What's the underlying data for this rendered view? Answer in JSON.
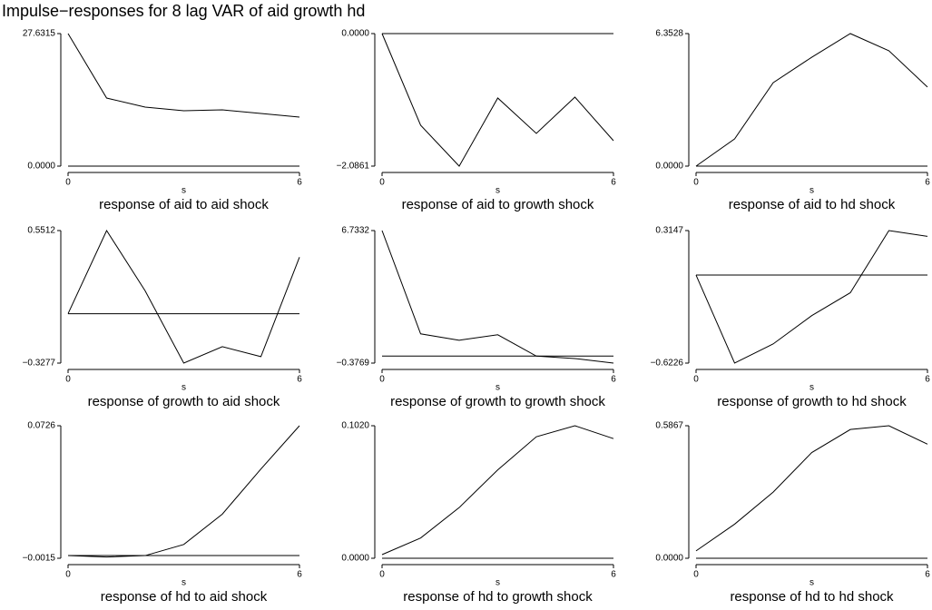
{
  "title": "Impulse−responses for 8 lag VAR of aid growth hd",
  "chart_data": [
    {
      "type": "line",
      "title": "response of aid to aid shock",
      "xlabel": "s",
      "x": [
        0,
        1,
        2,
        3,
        4,
        5,
        6
      ],
      "values": [
        27.6315,
        14.19,
        12.3,
        11.54,
        11.73,
        10.98,
        10.22
      ],
      "color": "#000000",
      "xlim": [
        0,
        6
      ],
      "xticks": [
        0,
        6
      ],
      "ylim": [
        0,
        27.6315
      ],
      "yticks": [
        {
          "value": 0,
          "label": "0.0000"
        },
        27.6315
      ]
    },
    {
      "type": "line",
      "title": "response of aid to growth shock",
      "xlabel": "s",
      "x": [
        0,
        1,
        2,
        3,
        4,
        5,
        6
      ],
      "values": [
        0,
        -1.443,
        -2.0861,
        -1.014,
        -1.571,
        -1.0,
        -1.686
      ],
      "color": "#000000",
      "xlim": [
        0,
        6
      ],
      "xticks": [
        0,
        6
      ],
      "ylim": [
        -2.0861,
        0
      ],
      "yticks": [
        {
          "value": -2.0861,
          "label": "−2.0861"
        },
        {
          "value": 0,
          "label": "0.0000"
        }
      ]
    },
    {
      "type": "line",
      "title": "response of aid to hd shock",
      "xlabel": "s",
      "x": [
        0,
        1,
        2,
        3,
        4,
        5,
        6
      ],
      "values": [
        0,
        1.305,
        4.0,
        5.22,
        6.3528,
        5.53,
        3.79
      ],
      "color": "#000000",
      "xlim": [
        0,
        6
      ],
      "xticks": [
        0,
        6
      ],
      "ylim": [
        0,
        6.3528
      ],
      "yticks": [
        {
          "value": 0,
          "label": "0.0000"
        },
        6.3528
      ]
    },
    {
      "type": "line",
      "title": "response of growth to aid shock",
      "xlabel": "s",
      "x": [
        0,
        1,
        2,
        3,
        4,
        5,
        6
      ],
      "values": [
        0,
        0.5512,
        0.151,
        -0.3277,
        -0.219,
        -0.285,
        0.375
      ],
      "color": "#000000",
      "xlim": [
        0,
        6
      ],
      "xticks": [
        0,
        6
      ],
      "ylim": [
        -0.3277,
        0.5512
      ],
      "yticks": [
        {
          "value": -0.3277,
          "label": "−0.3277"
        },
        0.5512
      ]
    },
    {
      "type": "line",
      "title": "response of growth to growth shock",
      "xlabel": "s",
      "x": [
        0,
        1,
        2,
        3,
        4,
        5,
        6
      ],
      "values": [
        6.7332,
        1.192,
        0.849,
        1.143,
        0.0,
        -0.132,
        -0.3769
      ],
      "color": "#000000",
      "xlim": [
        0,
        6
      ],
      "xticks": [
        0,
        6
      ],
      "ylim": [
        -0.3769,
        6.7332
      ],
      "yticks": [
        {
          "value": -0.3769,
          "label": "−0.3769"
        },
        6.7332
      ]
    },
    {
      "type": "line",
      "title": "response of growth to hd shock",
      "xlabel": "s",
      "x": [
        0,
        1,
        2,
        3,
        4,
        5,
        6
      ],
      "values": [
        0,
        -0.6226,
        -0.487,
        -0.287,
        -0.125,
        0.3147,
        0.274
      ],
      "color": "#000000",
      "xlim": [
        0,
        6
      ],
      "xticks": [
        0,
        6
      ],
      "ylim": [
        -0.6226,
        0.3147
      ],
      "yticks": [
        {
          "value": -0.6226,
          "label": "−0.6226"
        },
        0.3147
      ]
    },
    {
      "type": "line",
      "title": "response of hd to aid shock",
      "xlabel": "s",
      "x": [
        0,
        1,
        2,
        3,
        4,
        5,
        6
      ],
      "values": [
        0,
        -0.0008,
        0.0,
        0.0062,
        0.0232,
        0.0484,
        0.0726
      ],
      "color": "#000000",
      "xlim": [
        0,
        6
      ],
      "xticks": [
        0,
        6
      ],
      "ylim": [
        -0.0015,
        0.0726
      ],
      "yticks": [
        {
          "value": -0.0015,
          "label": "−0.0015"
        },
        0.0726
      ]
    },
    {
      "type": "line",
      "title": "response of hd to growth shock",
      "xlabel": "s",
      "x": [
        0,
        1,
        2,
        3,
        4,
        5,
        6
      ],
      "values": [
        0.0028,
        0.0156,
        0.039,
        0.068,
        0.0935,
        0.102,
        0.0921
      ],
      "color": "#000000",
      "xlim": [
        0,
        6
      ],
      "xticks": [
        0,
        6
      ],
      "ylim": [
        0,
        0.102
      ],
      "yticks": [
        {
          "value": 0,
          "label": "0.0000"
        },
        {
          "value": 0.102,
          "label": "0.1020"
        }
      ]
    },
    {
      "type": "line",
      "title": "response of hd to hd shock",
      "xlabel": "s",
      "x": [
        0,
        1,
        2,
        3,
        4,
        5,
        6
      ],
      "values": [
        0.0326,
        0.151,
        0.293,
        0.468,
        0.57,
        0.5867,
        0.505
      ],
      "color": "#000000",
      "xlim": [
        0,
        6
      ],
      "xticks": [
        0,
        6
      ],
      "ylim": [
        0,
        0.5867
      ],
      "yticks": [
        {
          "value": 0,
          "label": "0.0000"
        },
        0.5867
      ]
    }
  ]
}
